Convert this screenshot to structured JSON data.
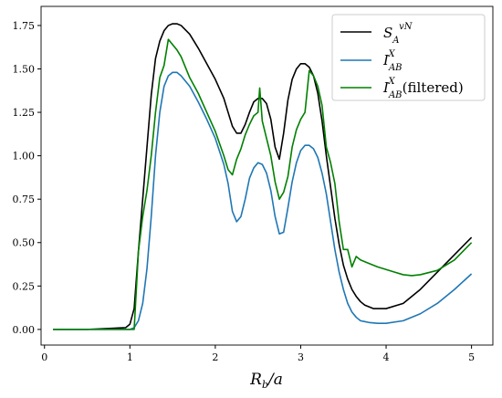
{
  "chart_data": {
    "type": "line",
    "xlabel": "R_b/a",
    "xlim": [
      -0.04,
      5.25
    ],
    "ylim": [
      -0.09,
      1.86
    ],
    "xticks": [
      0,
      1,
      2,
      3,
      4,
      5
    ],
    "yticks": [
      0.0,
      0.25,
      0.5,
      0.75,
      1.0,
      1.25,
      1.5,
      1.75
    ],
    "xtick_labels": [
      "0",
      "1",
      "2",
      "3",
      "4",
      "5"
    ],
    "ytick_labels": [
      "0.00",
      "0.25",
      "0.50",
      "0.75",
      "1.00",
      "1.25",
      "1.50",
      "1.75"
    ],
    "grid": false,
    "legend_position": "top-right",
    "series": [
      {
        "name": "S_A^vN",
        "color": "#000000",
        "x": [
          0.1,
          0.5,
          0.95,
          1.0,
          1.05,
          1.1,
          1.15,
          1.2,
          1.25,
          1.3,
          1.35,
          1.4,
          1.45,
          1.5,
          1.55,
          1.6,
          1.7,
          1.8,
          1.9,
          2.0,
          2.1,
          2.15,
          2.2,
          2.25,
          2.3,
          2.35,
          2.4,
          2.45,
          2.5,
          2.55,
          2.6,
          2.65,
          2.7,
          2.75,
          2.8,
          2.85,
          2.9,
          2.95,
          3.0,
          3.05,
          3.1,
          3.15,
          3.2,
          3.25,
          3.3,
          3.35,
          3.4,
          3.45,
          3.5,
          3.55,
          3.6,
          3.65,
          3.7,
          3.75,
          3.8,
          3.85,
          3.9,
          4.0,
          4.2,
          4.4,
          4.6,
          4.8,
          5.0
        ],
        "y": [
          0.0,
          0.0,
          0.01,
          0.03,
          0.12,
          0.45,
          0.75,
          1.05,
          1.35,
          1.56,
          1.66,
          1.72,
          1.75,
          1.76,
          1.76,
          1.75,
          1.7,
          1.62,
          1.53,
          1.44,
          1.33,
          1.25,
          1.17,
          1.13,
          1.13,
          1.18,
          1.25,
          1.31,
          1.33,
          1.33,
          1.3,
          1.21,
          1.05,
          0.98,
          1.13,
          1.32,
          1.44,
          1.5,
          1.53,
          1.53,
          1.51,
          1.46,
          1.36,
          1.2,
          1.0,
          0.82,
          0.64,
          0.49,
          0.37,
          0.29,
          0.23,
          0.19,
          0.16,
          0.14,
          0.13,
          0.12,
          0.12,
          0.12,
          0.15,
          0.23,
          0.33,
          0.43,
          0.53
        ]
      },
      {
        "name": "I_AB^X",
        "color": "#1f77b4",
        "x": [
          0.1,
          0.5,
          1.0,
          1.05,
          1.1,
          1.15,
          1.2,
          1.25,
          1.3,
          1.35,
          1.4,
          1.45,
          1.5,
          1.55,
          1.6,
          1.7,
          1.8,
          1.9,
          2.0,
          2.1,
          2.15,
          2.2,
          2.25,
          2.3,
          2.35,
          2.4,
          2.45,
          2.5,
          2.55,
          2.6,
          2.65,
          2.7,
          2.75,
          2.8,
          2.85,
          2.9,
          2.95,
          3.0,
          3.05,
          3.1,
          3.15,
          3.2,
          3.25,
          3.3,
          3.35,
          3.4,
          3.45,
          3.5,
          3.55,
          3.6,
          3.65,
          3.7,
          3.75,
          3.8,
          3.9,
          4.0,
          4.2,
          4.4,
          4.6,
          4.8,
          5.0
        ],
        "y": [
          0.0,
          0.0,
          0.0,
          0.01,
          0.05,
          0.15,
          0.35,
          0.65,
          1.0,
          1.25,
          1.4,
          1.46,
          1.48,
          1.48,
          1.46,
          1.4,
          1.31,
          1.21,
          1.1,
          0.95,
          0.84,
          0.68,
          0.62,
          0.65,
          0.75,
          0.87,
          0.93,
          0.96,
          0.95,
          0.9,
          0.8,
          0.65,
          0.55,
          0.56,
          0.7,
          0.85,
          0.96,
          1.03,
          1.06,
          1.06,
          1.04,
          0.99,
          0.9,
          0.78,
          0.62,
          0.46,
          0.33,
          0.23,
          0.15,
          0.1,
          0.07,
          0.05,
          0.045,
          0.04,
          0.035,
          0.035,
          0.05,
          0.09,
          0.15,
          0.23,
          0.32
        ]
      },
      {
        "name": "I_AB^X (filtered)",
        "color": "#008000",
        "x": [
          0.1,
          0.5,
          1.0,
          1.05,
          1.1,
          1.15,
          1.2,
          1.25,
          1.3,
          1.35,
          1.4,
          1.45,
          1.5,
          1.55,
          1.6,
          1.7,
          1.8,
          1.9,
          2.0,
          2.1,
          2.15,
          2.2,
          2.25,
          2.3,
          2.35,
          2.4,
          2.45,
          2.5,
          2.52,
          2.55,
          2.6,
          2.65,
          2.7,
          2.75,
          2.8,
          2.85,
          2.9,
          2.95,
          3.0,
          3.05,
          3.1,
          3.15,
          3.2,
          3.25,
          3.3,
          3.35,
          3.4,
          3.45,
          3.5,
          3.55,
          3.6,
          3.65,
          3.7,
          3.8,
          3.9,
          4.0,
          4.1,
          4.2,
          4.3,
          4.4,
          4.6,
          4.8,
          5.0
        ],
        "y": [
          0.0,
          0.0,
          0.0,
          0.0,
          0.45,
          0.65,
          0.8,
          1.0,
          1.25,
          1.45,
          1.52,
          1.67,
          1.64,
          1.61,
          1.57,
          1.45,
          1.36,
          1.25,
          1.14,
          1.0,
          0.92,
          0.89,
          0.98,
          1.04,
          1.12,
          1.18,
          1.23,
          1.25,
          1.39,
          1.2,
          1.1,
          1.0,
          0.85,
          0.75,
          0.79,
          0.88,
          1.05,
          1.15,
          1.21,
          1.25,
          1.49,
          1.46,
          1.4,
          1.29,
          1.05,
          0.96,
          0.84,
          0.62,
          0.46,
          0.46,
          0.36,
          0.42,
          0.4,
          0.38,
          0.36,
          0.345,
          0.33,
          0.315,
          0.31,
          0.315,
          0.34,
          0.4,
          0.5
        ]
      }
    ]
  }
}
